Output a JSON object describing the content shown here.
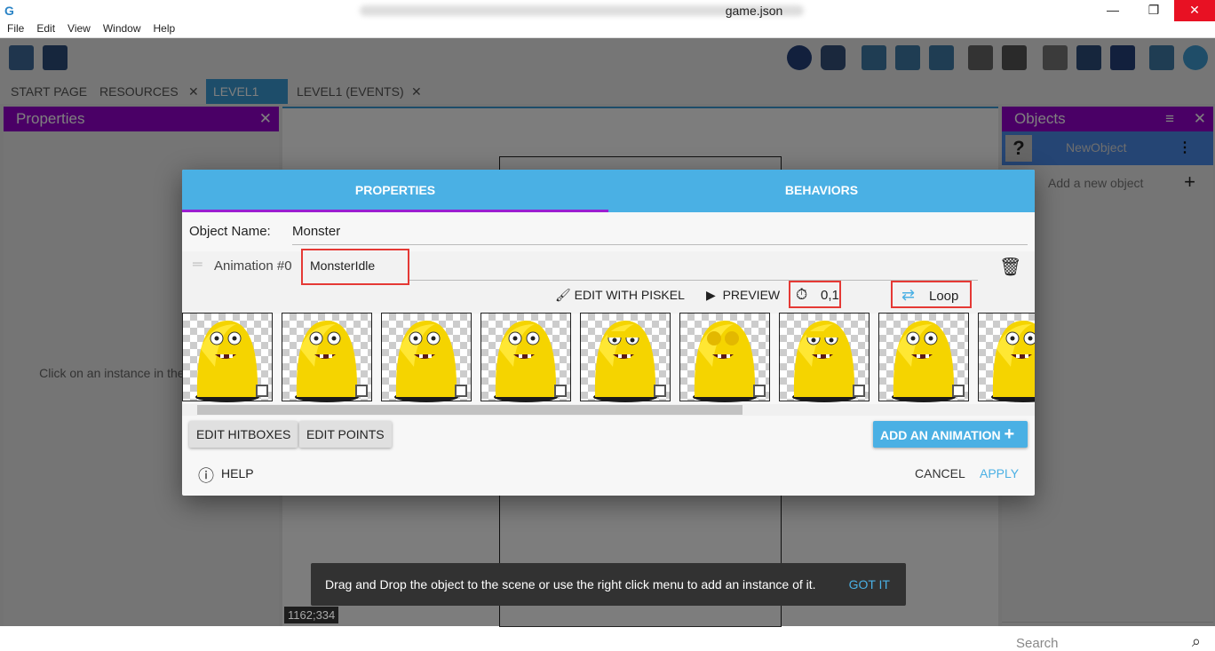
{
  "window": {
    "title": "game.json",
    "minimize": "—",
    "maximize": "❐",
    "close": "✕"
  },
  "menu": [
    "File",
    "Edit",
    "View",
    "Window",
    "Help"
  ],
  "tabs": [
    {
      "label": "START PAGE"
    },
    {
      "label": "RESOURCES",
      "close": "✕"
    },
    {
      "label": "LEVEL1",
      "close": "✕"
    },
    {
      "label": "LEVEL1 (EVENTS)",
      "close": "✕"
    }
  ],
  "left_panel": {
    "title": "Properties",
    "close": "✕",
    "hint": "Click on an instance in the scene to display its properties"
  },
  "right_panel": {
    "title": "Objects",
    "close": "✕",
    "object": "NewObject",
    "add_object": "Add a new object",
    "search_placeholder": "Search"
  },
  "dialog": {
    "tabs": [
      "PROPERTIES",
      "BEHAVIORS"
    ],
    "object_name_label": "Object Name:",
    "object_name": "Monster",
    "animation_label": "Animation #0",
    "animation_name": "MonsterIdle",
    "edit_piskel": "EDIT WITH PISKEL",
    "preview": "PREVIEW",
    "timing": "0,1",
    "loop": "Loop",
    "edit_hitboxes": "EDIT HITBOXES",
    "edit_points": "EDIT POINTS",
    "add_animation": "ADD AN ANIMATION",
    "help": "HELP",
    "cancel": "CANCEL",
    "apply": "APPLY",
    "frames": [
      "open",
      "open",
      "open",
      "open",
      "half",
      "closed",
      "half",
      "open",
      "open"
    ]
  },
  "snackbar": {
    "message": "Drag and Drop the object to the scene or use the right click menu to add an instance of it.",
    "action": "GOT IT"
  },
  "coords": "1162;334",
  "colors": {
    "accent": "#4ab0e4",
    "panel_header": "#9400cc",
    "highlight": "#e53935"
  }
}
